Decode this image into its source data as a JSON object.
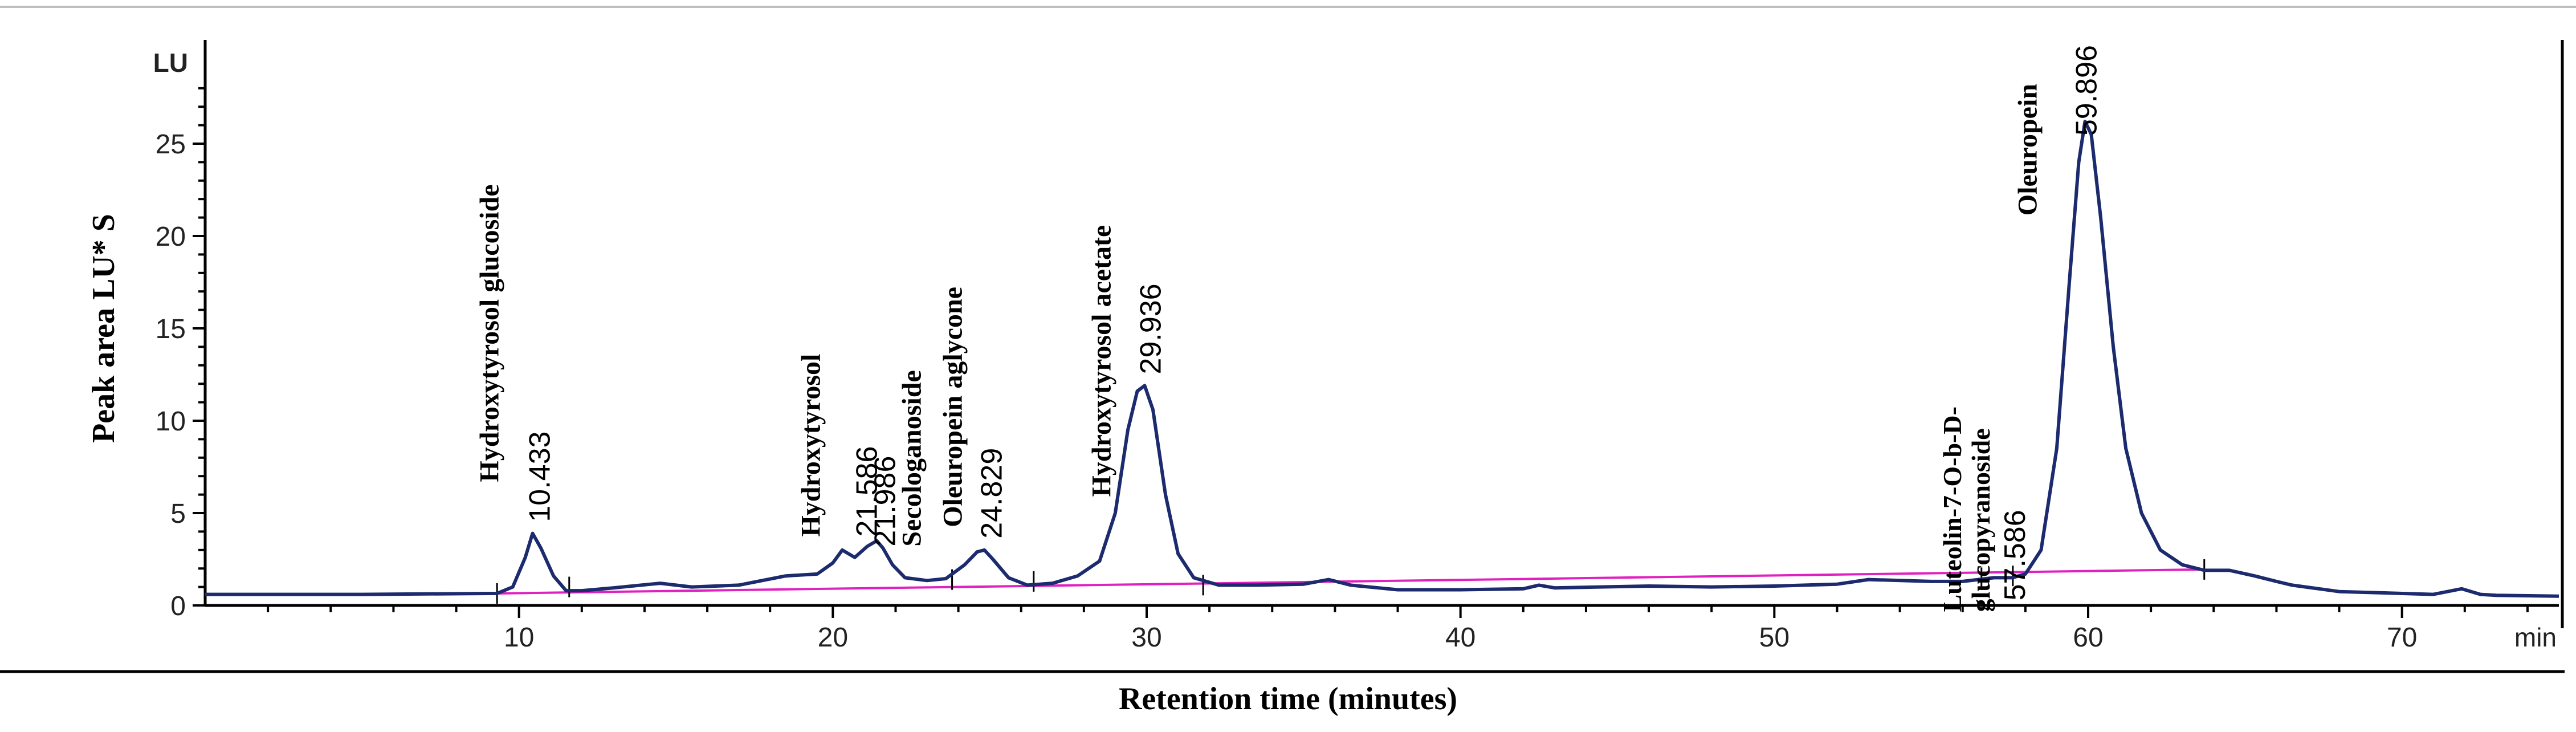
{
  "chart_data": {
    "type": "line",
    "ylabel": "Peak area LU* S",
    "xlabel": "Retention time (minutes)",
    "y_unit": "LU",
    "x_unit": "min",
    "xlim": [
      0,
      75
    ],
    "ylim": [
      0,
      30
    ],
    "x_ticks": [
      10,
      20,
      30,
      40,
      50,
      60,
      70
    ],
    "y_ticks": [
      0,
      5,
      10,
      15,
      20,
      25
    ],
    "colors": {
      "trace": "#1c2a6e",
      "baseline": "#e020c0",
      "axis": "#000000"
    },
    "series": [
      {
        "x": [
          0,
          5,
          9.3,
          9.8,
          10.2,
          10.433,
          10.7,
          11.1,
          11.5,
          12,
          13,
          14.5,
          15.5,
          17,
          18.5,
          19.5,
          20,
          20.3,
          20.7,
          21.1,
          21.4,
          21.6,
          21.9,
          22.3,
          23,
          23.6,
          24.2,
          24.6,
          24.83,
          25.1,
          25.6,
          26.2,
          27,
          27.8,
          28.5,
          29,
          29.4,
          29.7,
          29.936,
          30.2,
          30.6,
          31,
          31.5,
          32.3,
          33.5,
          35,
          35.8,
          36.5,
          38,
          40,
          42,
          42.5,
          43,
          46,
          48,
          50,
          52,
          53,
          55,
          56,
          57,
          57.586,
          58,
          58.5,
          59,
          59.4,
          59.7,
          59.9,
          60.1,
          60.4,
          60.8,
          61.2,
          61.7,
          62.3,
          63,
          63.7,
          64.5,
          65.3,
          66,
          66.5,
          68,
          71,
          71.9,
          72.5,
          73,
          75
        ],
        "y": [
          0.6,
          0.6,
          0.65,
          1.0,
          2.6,
          3.9,
          3.1,
          1.6,
          0.8,
          0.8,
          0.95,
          1.2,
          1.0,
          1.1,
          1.6,
          1.7,
          2.3,
          3.0,
          2.6,
          3.2,
          3.5,
          3.1,
          2.2,
          1.5,
          1.35,
          1.45,
          2.2,
          2.9,
          3.0,
          2.5,
          1.5,
          1.1,
          1.2,
          1.6,
          2.4,
          5.0,
          9.5,
          11.6,
          11.9,
          10.6,
          6.0,
          2.8,
          1.5,
          1.1,
          1.1,
          1.15,
          1.4,
          1.1,
          0.85,
          0.85,
          0.9,
          1.1,
          0.95,
          1.05,
          1.0,
          1.05,
          1.15,
          1.4,
          1.3,
          1.3,
          1.5,
          1.5,
          1.7,
          3.0,
          8.5,
          17.5,
          24.0,
          26.2,
          25.5,
          21.0,
          14.0,
          8.5,
          5.0,
          3.0,
          2.2,
          1.9,
          1.9,
          1.6,
          1.3,
          1.1,
          0.75,
          0.6,
          0.9,
          0.6,
          0.55,
          0.5
        ]
      }
    ],
    "baseline": {
      "x": [
        9.3,
        63.7
      ],
      "y": [
        0.65,
        1.95
      ]
    },
    "peaks": [
      {
        "name": "Hydroxytyrosol  glucoside",
        "rt": "10.433",
        "x": 10.433,
        "y": 3.9
      },
      {
        "name": "Hydroxytyrosol",
        "rt": "21.586",
        "x": 21.586,
        "y": 3.1
      },
      {
        "name": "Secologanoside",
        "rt": "21.986",
        "x": 21.986,
        "y": 3.5
      },
      {
        "name": "Oleuropein  aglycone",
        "rt": "24.829",
        "x": 24.829,
        "y": 3.0
      },
      {
        "name": "Hydroxytyrosol  acetate",
        "rt": "29.936",
        "x": 29.936,
        "y": 11.9
      },
      {
        "name": "Luteolin-7-O-b-D-glucopyranoside",
        "name_line1": "Luteolin-7-O-b-D-",
        "name_line2": "glucopyranoside",
        "rt": "57.586",
        "x": 57.586,
        "y": 1.5
      },
      {
        "name": "Oleuropein",
        "rt": "59.896",
        "x": 59.896,
        "y": 26.2
      }
    ]
  }
}
